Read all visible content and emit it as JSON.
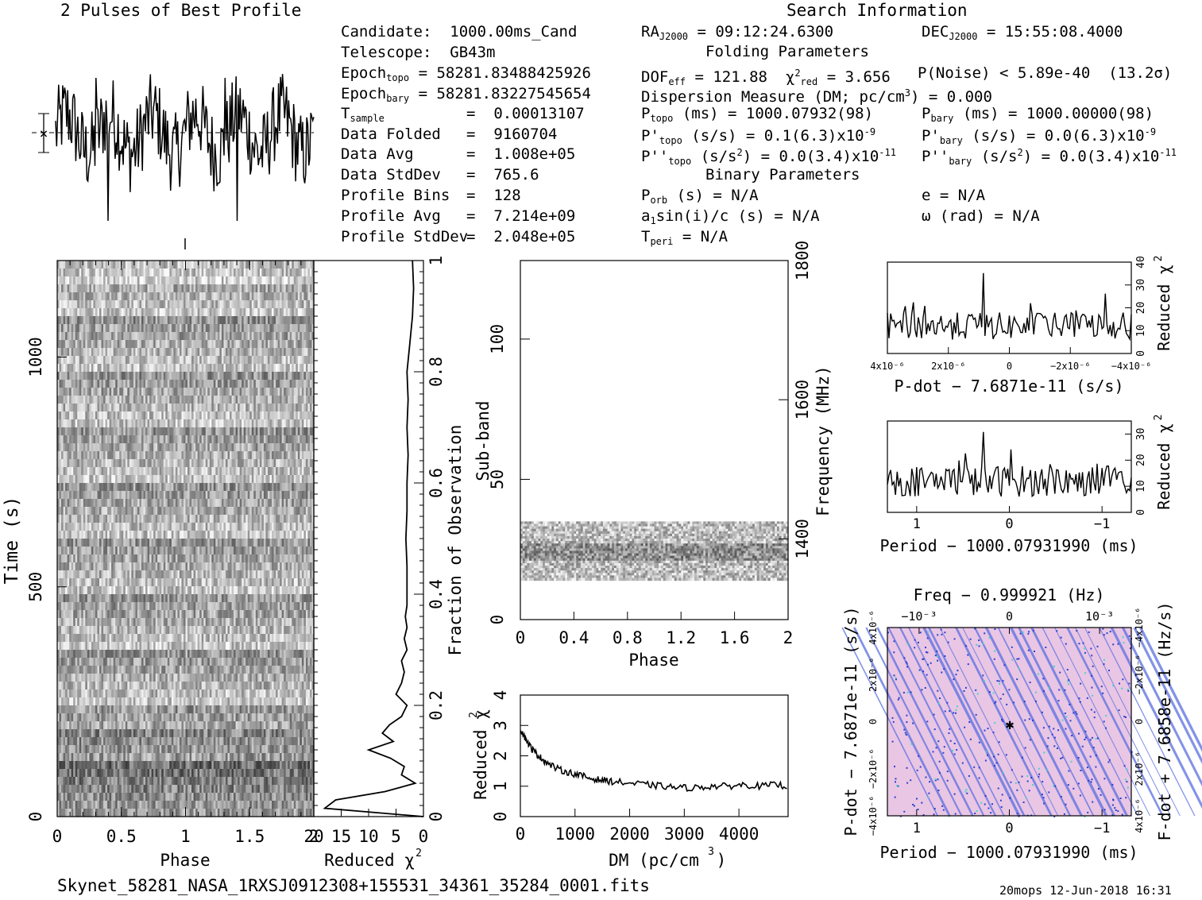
{
  "header": {
    "profile_title": "2 Pulses of Best Profile",
    "search_title": "Search Information",
    "folding_title": "Folding Parameters",
    "binary_title": "Binary Parameters"
  },
  "info_left": [
    {
      "label": "Candidate:",
      "value": "1000.00ms_Cand"
    },
    {
      "label": "Telescope:",
      "value": "GB43m"
    },
    {
      "label": "Epoch",
      "sub": "topo",
      "value": "= 58281.83488425926"
    },
    {
      "label": "Epoch",
      "sub": "bary",
      "value": "= 58281.83227545654"
    },
    {
      "label": "T",
      "sub": "sample",
      "value": "0.00013107"
    },
    {
      "label": "Data Folded",
      "value": "9160704"
    },
    {
      "label": "Data Avg",
      "value": "1.008e+05"
    },
    {
      "label": "Data StdDev",
      "value": "765.6"
    },
    {
      "label": "Profile Bins",
      "value": "128"
    },
    {
      "label": "Profile Avg",
      "value": "7.214e+09"
    },
    {
      "label": "Profile StdDev",
      "value": "2.048e+05"
    }
  ],
  "search_info": {
    "ra": "= 09:12:24.6300",
    "dec": "= 15:55:08.4000",
    "dof": "= 121.88",
    "chi2": "= 3.656",
    "pnoise": "P(Noise) < 5.89e-40",
    "sigma": "(13.2σ)",
    "dm_line": "Dispersion Measure (DM; pc/cm",
    "dm_value": ") = 0.000",
    "ptopo": "(ms) =  1000.07932(98)",
    "pbary": "(ms) =  1000.00000(98)",
    "pdtopo": "(s/s) =  0.1(6.3)x10",
    "pdbary": "(s/s) = 0.0(6.3)x10",
    "pddtopo": "(s/s",
    "pddtopo_val": ") = 0.0(3.4)x10",
    "pddbary": "(s/s",
    "pddbary_val": ") = 0.0(3.4)x10",
    "pdexp": "-9",
    "pddexp": "-11",
    "porb": "(s) = N/A",
    "asini": "sin(i)/c (s) = N/A",
    "tperi": "= N/A",
    "ecc": "e = N/A",
    "omega": "ω (rad) = N/A"
  },
  "footer": {
    "filename": "Skynet_58281_NASA_1RXSJ0912308+155531_34361_35284_0001.fits",
    "stamp": "20mops 12-Jun-2018 16:31"
  },
  "chart_data": [
    {
      "type": "line",
      "title": "2 Pulses of Best Profile",
      "x_range": [
        0,
        2
      ],
      "note": "noise-like pulse profile, two periods"
    },
    {
      "type": "heatmap",
      "xlabel": "Phase",
      "ylabel": "Time (s)",
      "x_ticks": [
        "0",
        "0.5",
        "1",
        "1.5",
        "2"
      ],
      "y_ticks": [
        "0",
        "500",
        "1000"
      ],
      "ylim": [
        0,
        1210
      ]
    },
    {
      "type": "line",
      "xlabel": "Reduced χ²",
      "ylabel": "Fraction of Observation",
      "x_ticks": [
        "20",
        "15",
        "10",
        "5",
        "0"
      ],
      "y_ticks": [
        "0",
        "0.2",
        "0.4",
        "0.6",
        "0.8",
        "1"
      ],
      "y": [
        0.0,
        0.015,
        0.03,
        0.045,
        0.06,
        0.075,
        0.09,
        0.105,
        0.12,
        0.135,
        0.15,
        0.165,
        0.18,
        0.2,
        0.22,
        0.24,
        0.26,
        0.28,
        0.3,
        0.32,
        0.34,
        0.36,
        0.38,
        0.4,
        0.45,
        0.5,
        0.55,
        0.6,
        0.65,
        0.7,
        0.75,
        0.8,
        0.85,
        0.9,
        0.95,
        1.0
      ],
      "x": [
        0,
        18,
        16,
        7,
        1.5,
        4,
        3.5,
        6,
        10,
        5.5,
        7.5,
        6.2,
        4,
        3,
        5,
        4,
        3.5,
        4,
        3,
        3.5,
        3,
        3.3,
        3,
        3,
        3,
        3.2,
        3,
        3,
        2.8,
        3,
        2.8,
        3,
        2.5,
        2,
        1.8,
        2
      ]
    },
    {
      "type": "heatmap",
      "xlabel": "Phase",
      "ylabel": "Sub-band",
      "y2label": "Frequency (MHz)",
      "x_ticks": [
        "0",
        "0.4",
        "0.8",
        "1.2",
        "1.6",
        "2"
      ],
      "y_ticks": [
        "0",
        "50",
        "100"
      ],
      "y2_ticks": [
        "1400",
        "1600",
        "1800"
      ],
      "band_rows": [
        14,
        35
      ]
    },
    {
      "type": "line",
      "xlabel": "DM (pc/cm³)",
      "ylabel": "Reduced χ²",
      "x_ticks": [
        "0",
        "1000",
        "2000",
        "3000",
        "4000"
      ],
      "y_ticks": [
        "0",
        "1",
        "2",
        "3",
        "4"
      ],
      "xlim": [
        0,
        4900
      ],
      "ylim": [
        0,
        4
      ],
      "x": [
        0,
        100,
        200,
        300,
        400,
        500,
        700,
        900,
        1100,
        1300,
        1500,
        1700,
        2000,
        2300,
        2600,
        2900,
        3200,
        3500,
        3800,
        4100,
        4400,
        4700,
        4900
      ],
      "y": [
        2.9,
        2.55,
        2.25,
        2.05,
        1.9,
        1.75,
        1.55,
        1.45,
        1.35,
        1.25,
        1.2,
        1.15,
        1.1,
        1.05,
        1.0,
        0.95,
        0.95,
        1.0,
        1.0,
        1.05,
        1.0,
        1.05,
        1.0
      ]
    },
    {
      "type": "line",
      "xlabel": "P-dot − 7.6871e-11 (s/s)",
      "ylabel": "Reduced χ²",
      "x_ticks": [
        "4x10⁻⁶",
        "2x10⁻⁶",
        "0",
        "−2x10⁻⁶",
        "−4x10⁻⁶"
      ],
      "y_ticks": [
        "0",
        "10",
        "20",
        "30",
        "40"
      ]
    },
    {
      "type": "line",
      "xlabel": "Period − 1000.07931990 (ms)",
      "ylabel": "Reduced χ²",
      "x_ticks": [
        "1",
        "0",
        "−1"
      ],
      "y_ticks": [
        "0",
        "10",
        "20",
        "30"
      ]
    },
    {
      "type": "heatmap",
      "title": "Freq − 0.999921 (Hz)",
      "xlabel": "Period − 1000.07931990 (ms)",
      "ylabel": "P-dot − 7.6871e-11 (s/s)",
      "y2label": "F-dot + 7.6858e-11 (Hz/s)",
      "x_ticks": [
        "1",
        "0",
        "−1"
      ],
      "top_ticks": [
        "−10⁻³",
        "0",
        "10⁻³"
      ],
      "y_ticks": [
        "−4x10⁻⁶",
        "−2x10⁻⁶",
        "0",
        "2x10⁻⁶",
        "4x10⁻⁶"
      ],
      "y2_ticks": [
        "4x10⁻⁶",
        "2x10⁻⁶",
        "0",
        "−2x10⁻⁶",
        "−4x10⁻⁶"
      ],
      "colors": [
        "#e9c6e4",
        "#5a6fe0",
        "#2a3fd0",
        "#42d5c8"
      ]
    }
  ]
}
